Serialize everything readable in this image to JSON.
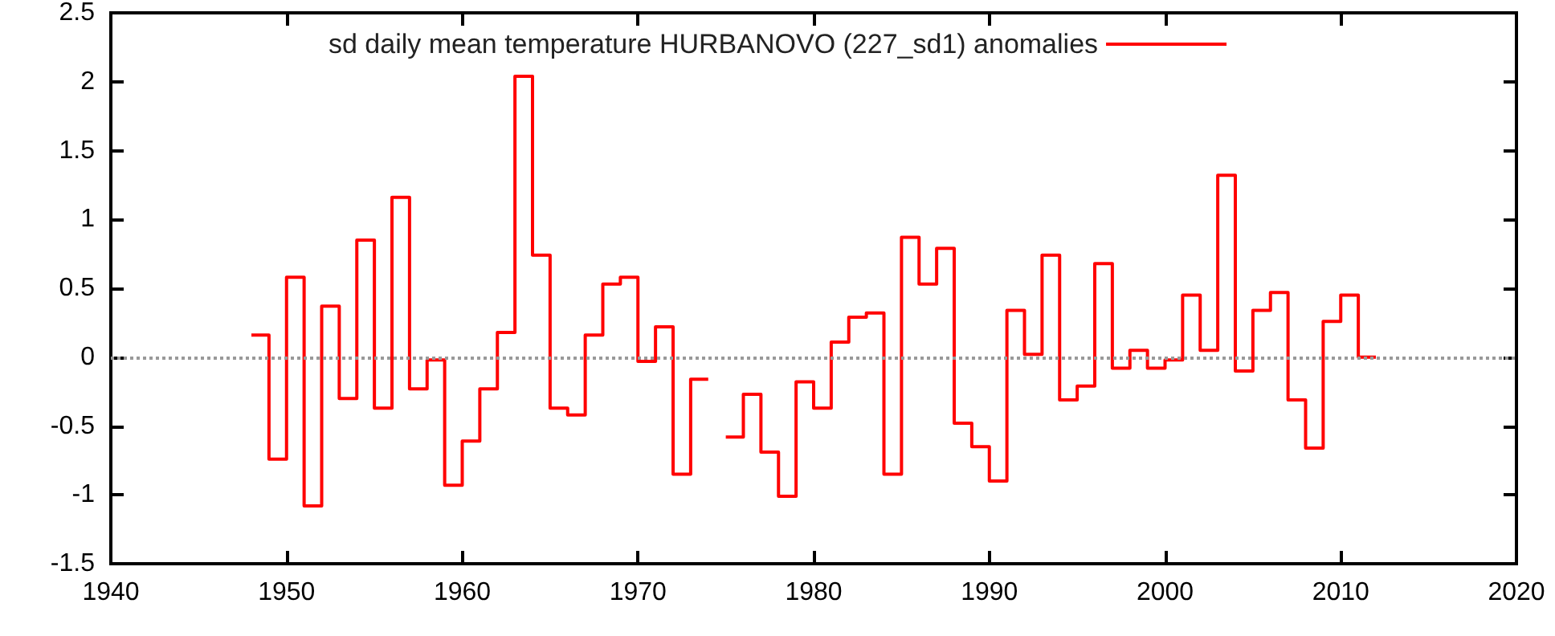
{
  "chart_data": {
    "type": "step",
    "x": [
      1948,
      1949,
      1950,
      1951,
      1952,
      1953,
      1954,
      1955,
      1956,
      1957,
      1958,
      1959,
      1960,
      1961,
      1962,
      1963,
      1964,
      1965,
      1966,
      1967,
      1968,
      1969,
      1970,
      1971,
      1972,
      1973,
      1974,
      1975,
      1976,
      1977,
      1978,
      1979,
      1980,
      1981,
      1982,
      1983,
      1984,
      1985,
      1986,
      1987,
      1988,
      1989,
      1990,
      1991,
      1992,
      1993,
      1994,
      1995,
      1996,
      1997,
      1998,
      1999,
      2000,
      2001,
      2002,
      2003,
      2004,
      2005,
      2006,
      2007,
      2008,
      2009,
      2010,
      2011,
      2012
    ],
    "series": [
      {
        "name": "sd daily mean temperature HURBANOVO (227_sd1) anomalies",
        "color": "#ff0000",
        "values": [
          0.16,
          -0.74,
          0.58,
          -1.08,
          0.37,
          -0.3,
          0.85,
          -0.37,
          1.16,
          -0.23,
          -0.02,
          -0.93,
          -0.61,
          -0.23,
          0.18,
          2.04,
          0.74,
          -0.37,
          -0.42,
          0.16,
          0.53,
          0.58,
          -0.03,
          0.22,
          -0.85,
          -0.16,
          null,
          -0.58,
          -0.27,
          -0.69,
          -1.01,
          -0.18,
          -0.37,
          0.11,
          0.29,
          0.32,
          -0.85,
          0.87,
          0.53,
          0.79,
          -0.48,
          -0.65,
          -0.9,
          0.34,
          0.02,
          0.74,
          -0.31,
          -0.21,
          0.68,
          -0.08,
          0.05,
          -0.08,
          -0.02,
          0.45,
          0.05,
          1.32,
          -0.1,
          0.34,
          0.47,
          -0.31,
          -0.66,
          0.26,
          0.45,
          0,
          0
        ]
      }
    ],
    "xlim": [
      1940,
      2020
    ],
    "xticks": [
      1940,
      1950,
      1960,
      1970,
      1980,
      1990,
      2000,
      2010,
      2020
    ],
    "ylim": [
      -1.5,
      2.5
    ],
    "yticks": [
      -1.5,
      -1,
      -0.5,
      0,
      0.5,
      1,
      1.5,
      2,
      2.5
    ],
    "ref_lines": [
      {
        "axis": "y",
        "value": 0,
        "color": "#999999",
        "line_style": "dotted"
      }
    ],
    "legend": "top",
    "grid": false,
    "marker": "none",
    "line_style": "solid"
  }
}
